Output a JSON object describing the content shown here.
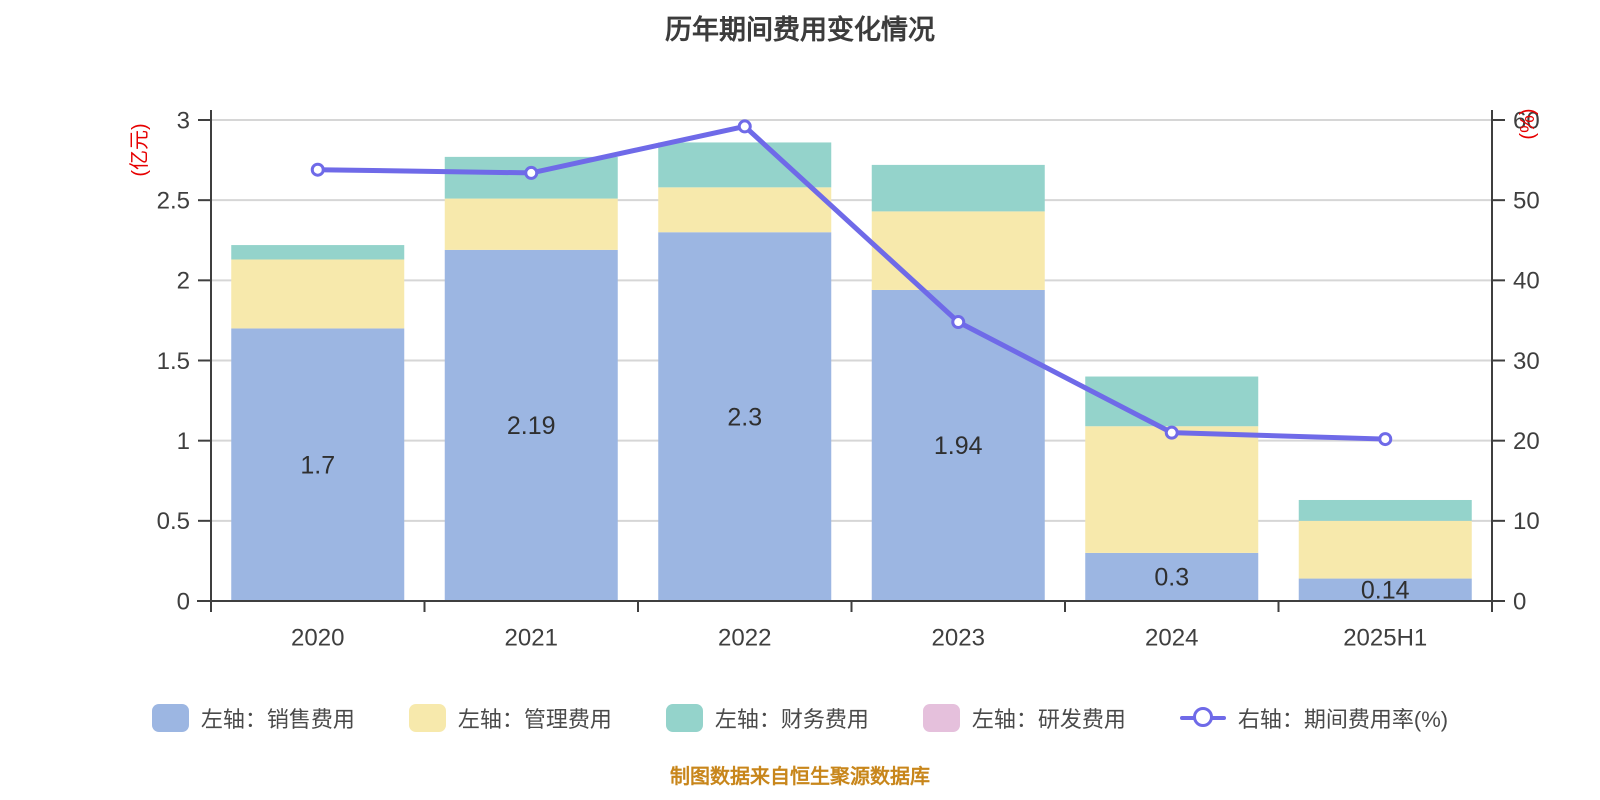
{
  "title": "历年期间费用变化情况",
  "footer": "制图数据来自恒生聚源数据库",
  "colors": {
    "sales": "#9CB6E2",
    "management": "#F7E9AC",
    "finance": "#94D3CB",
    "rd": "#E5C0DC",
    "line": "#6F6AE8",
    "grid": "#D6D6D6",
    "axis": "#3F3F3F",
    "tick_text": "#3F3F3F",
    "bar_label": "#2F2F2F",
    "axis_unit": "#E60000",
    "footer": "#C8861B",
    "legend_text": "#4A4A4A"
  },
  "chart_data": {
    "type": "bar",
    "subtype": "stacked-bar-with-line",
    "title": "历年期间费用变化情况",
    "categories": [
      "2020",
      "2021",
      "2022",
      "2023",
      "2024",
      "2025H1"
    ],
    "series": [
      {
        "name": "左轴：销售费用",
        "type": "bar",
        "axis": "left",
        "color_key": "sales",
        "values": [
          1.7,
          2.19,
          2.3,
          1.94,
          0.3,
          0.14
        ],
        "labels": [
          "1.7",
          "2.19",
          "2.3",
          "1.94",
          "0.3",
          "0.14"
        ],
        "show_labels": true
      },
      {
        "name": "左轴：管理费用",
        "type": "bar",
        "axis": "left",
        "color_key": "management",
        "values": [
          0.43,
          0.32,
          0.28,
          0.49,
          0.79,
          0.36
        ]
      },
      {
        "name": "左轴：财务费用",
        "type": "bar",
        "axis": "left",
        "color_key": "finance",
        "values": [
          0.09,
          0.26,
          0.28,
          0.29,
          0.31,
          0.13
        ]
      },
      {
        "name": "左轴：研发费用",
        "type": "bar",
        "axis": "left",
        "color_key": "rd",
        "values": [
          0,
          0,
          0,
          0,
          0,
          0
        ]
      },
      {
        "name": "右轴：期间费用率(%)",
        "type": "line",
        "axis": "right",
        "color_key": "line",
        "values": [
          53.8,
          53.4,
          59.2,
          34.8,
          21.0,
          20.2
        ]
      }
    ],
    "left_axis": {
      "unit": "(亿元)",
      "min": 0,
      "max": 3,
      "ticks": [
        0,
        0.5,
        1,
        1.5,
        2,
        2.5,
        3
      ],
      "tick_labels": [
        "0",
        "0.5",
        "1",
        "1.5",
        "2",
        "2.5",
        "3"
      ]
    },
    "right_axis": {
      "unit": "(%)",
      "min": 0,
      "max": 60,
      "ticks": [
        0,
        10,
        20,
        30,
        40,
        50,
        60
      ],
      "tick_labels": [
        "0",
        "10",
        "20",
        "30",
        "40",
        "50",
        "60"
      ]
    },
    "grid": true,
    "legend_position": "bottom"
  }
}
